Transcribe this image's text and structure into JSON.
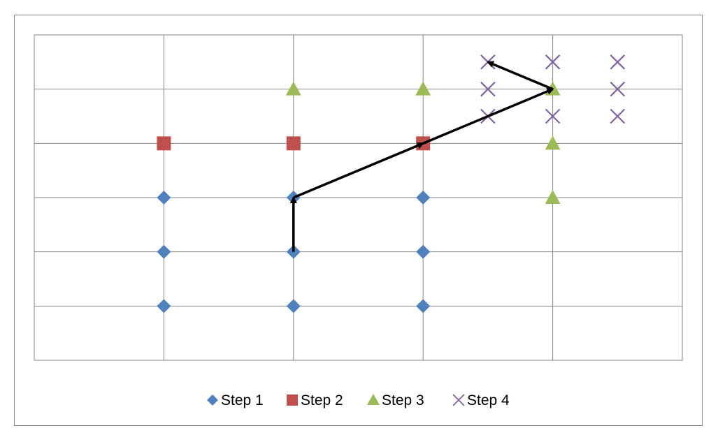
{
  "chart_data": {
    "type": "scatter",
    "title": "",
    "xlabel": "",
    "ylabel": "",
    "xlim": [
      0,
      5
    ],
    "ylim": [
      0,
      6
    ],
    "grid": true,
    "legend_position": "bottom",
    "series": [
      {
        "name": "Step 1",
        "marker": "diamond",
        "color": "#4F81BD",
        "points": [
          [
            1,
            1
          ],
          [
            1,
            2
          ],
          [
            1,
            3
          ],
          [
            2,
            1
          ],
          [
            2,
            2
          ],
          [
            2,
            3
          ],
          [
            3,
            1
          ],
          [
            3,
            2
          ],
          [
            3,
            3
          ]
        ]
      },
      {
        "name": "Step 2",
        "marker": "square",
        "color": "#C0504D",
        "points": [
          [
            1,
            4
          ],
          [
            2,
            4
          ],
          [
            3,
            4
          ]
        ]
      },
      {
        "name": "Step 3",
        "marker": "triangle",
        "color": "#9BBB59",
        "points": [
          [
            2,
            5
          ],
          [
            3,
            5
          ],
          [
            4,
            5
          ],
          [
            4,
            4
          ],
          [
            4,
            3
          ]
        ]
      },
      {
        "name": "Step 4",
        "marker": "x",
        "color": "#8064A2",
        "points": [
          [
            3.5,
            5.5
          ],
          [
            3.5,
            5
          ],
          [
            3.5,
            4.5
          ],
          [
            4,
            5.5
          ],
          [
            4,
            4.5
          ],
          [
            4.5,
            5.5
          ],
          [
            4.5,
            5
          ],
          [
            4.5,
            4.5
          ]
        ]
      }
    ],
    "arrows": [
      {
        "from": [
          2,
          2
        ],
        "to": [
          2,
          3
        ]
      },
      {
        "from": [
          2,
          3
        ],
        "to": [
          3,
          4
        ]
      },
      {
        "from": [
          3,
          4
        ],
        "to": [
          4,
          5
        ]
      },
      {
        "from": [
          4,
          5
        ],
        "to": [
          3.5,
          5.5
        ]
      }
    ]
  }
}
